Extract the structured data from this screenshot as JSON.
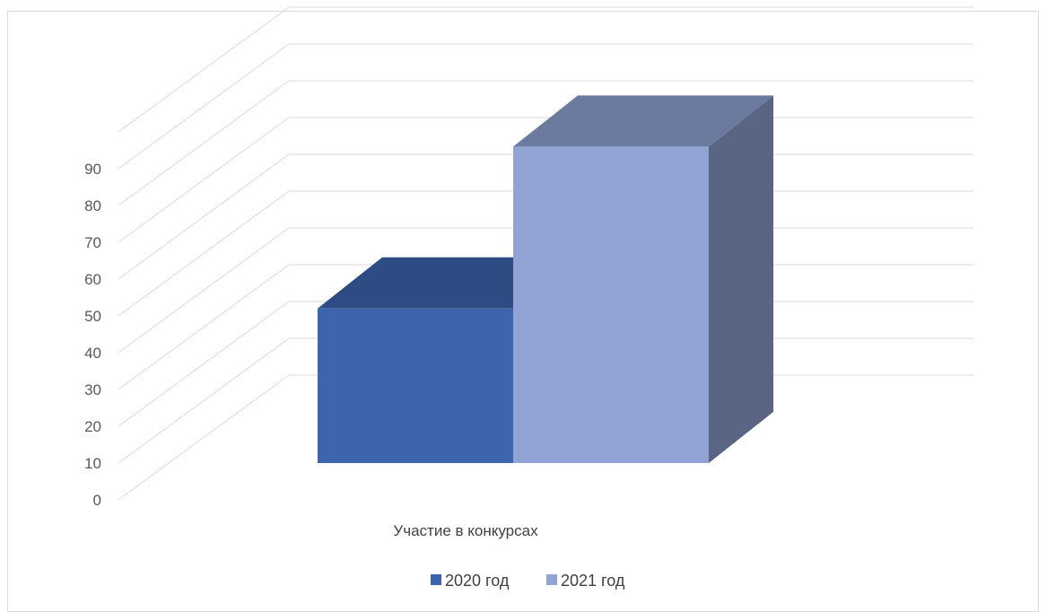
{
  "chart_data": {
    "type": "bar",
    "style": "3d-clustered-column",
    "title": "",
    "xlabel": "",
    "ylabel": "",
    "categories": [
      "Участие в конкурсах"
    ],
    "series": [
      {
        "name": "2020 год",
        "values": [
          42
        ],
        "color": "#3c65ae"
      },
      {
        "name": "2021 год",
        "values": [
          86
        ],
        "color": "#91a3d5"
      }
    ],
    "ylim": [
      0,
      90
    ],
    "ytick_step": 10,
    "y_ticks": [
      "0",
      "10",
      "20",
      "30",
      "40",
      "50",
      "60",
      "70",
      "80",
      "90"
    ],
    "grid": true,
    "legend_position": "bottom"
  }
}
